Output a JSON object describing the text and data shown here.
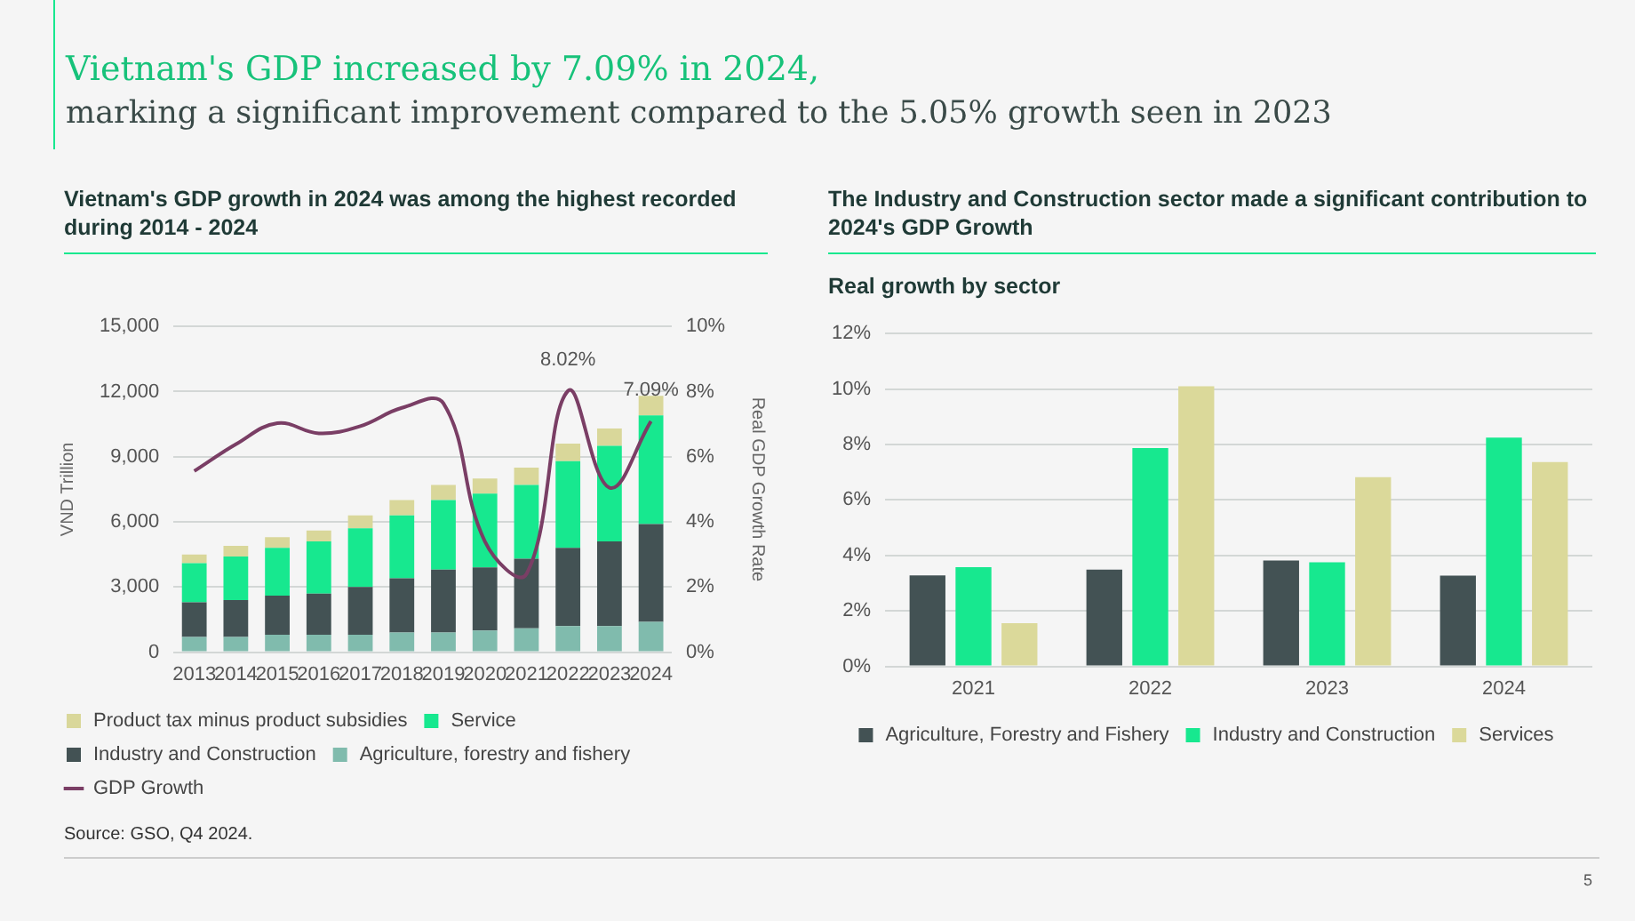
{
  "chart_data": [
    {
      "type": "bar",
      "title": "Vietnam's GDP growth in 2024 was among the highest recorded during 2014 - 2024",
      "annotations": [
        "Vietnam's GDP increased by 7.09% in 2024,",
        "marking a significant improvement compared to the 5.05% growth seen in 2023",
        "Source: GSO, Q4 2024.",
        "5"
      ],
      "ylabel": "VND Trillion",
      "y2label": "Real GDP Growth Rate",
      "stacked": true,
      "legend": "bottom",
      "grid": "y",
      "marker": "none",
      "categories": [
        "2013",
        "2014",
        "2015",
        "2016",
        "2017",
        "2018",
        "2019",
        "2020",
        "2021",
        "2022",
        "2023",
        "2024"
      ],
      "ylim": [
        0,
        15000
      ],
      "yticks": [
        0,
        {
          "value": 3000,
          "label": "3,000"
        },
        {
          "value": 6000,
          "label": "6,000"
        },
        {
          "value": 9000,
          "label": "9,000"
        },
        {
          "value": 12000,
          "label": "12,000"
        },
        {
          "value": 15000,
          "label": "15,000"
        }
      ],
      "y2lim": [
        0,
        10
      ],
      "y2ticks": [
        {
          "value": 0,
          "label": "0%"
        },
        {
          "value": 2,
          "label": "2%"
        },
        {
          "value": 4,
          "label": "4%"
        },
        {
          "value": 6,
          "label": "6%"
        },
        {
          "value": 8,
          "label": "8%"
        },
        {
          "value": 10,
          "label": "10%"
        }
      ],
      "series": [
        {
          "name": "Agriculture, forestry and fishery",
          "color": "#80bbad",
          "values": [
            700,
            700,
            800,
            800,
            800,
            900,
            900,
            1000,
            1100,
            1200,
            1200,
            1400
          ]
        },
        {
          "name": "Industry and Construction",
          "color": "#435254",
          "values": [
            1600,
            1700,
            1800,
            1900,
            2200,
            2500,
            2900,
            2900,
            3200,
            3600,
            3900,
            4500
          ]
        },
        {
          "name": "Service",
          "color": "#17e88f",
          "values": [
            1800,
            2000,
            2200,
            2400,
            2700,
            2900,
            3200,
            3400,
            3400,
            4000,
            4400,
            5000
          ]
        },
        {
          "name": "Product tax minus product subsidies",
          "color": "#d9d79a",
          "values": [
            400,
            500,
            500,
            500,
            600,
            700,
            700,
            700,
            800,
            800,
            800,
            900
          ]
        },
        {
          "name": "GDP Growth",
          "type": "line",
          "axis": "y2",
          "color": "#7a3e65",
          "values": [
            5.56,
            6.38,
            7.03,
            6.72,
            6.94,
            7.5,
            7.64,
            3.4,
            2.4,
            8.02,
            5.05,
            7.09
          ],
          "value_labels": [
            null,
            null,
            null,
            null,
            null,
            null,
            null,
            null,
            null,
            "8.02%",
            null,
            "7.09%"
          ]
        }
      ]
    },
    {
      "type": "bar",
      "title": "The Industry and Construction sector made a significant contribution to 2024's GDP Growth",
      "subtitle": "Real growth by sector",
      "legend": "bottom",
      "grid": "y",
      "categories": [
        "2021",
        "2022",
        "2023",
        "2024"
      ],
      "ylim": [
        0,
        12
      ],
      "yticks": [
        {
          "value": 0,
          "label": "0%"
        },
        {
          "value": 2,
          "label": "2%"
        },
        {
          "value": 4,
          "label": "4%"
        },
        {
          "value": 6,
          "label": "6%"
        },
        {
          "value": 8,
          "label": "8%"
        },
        {
          "value": 10,
          "label": "10%"
        },
        {
          "value": 12,
          "label": "12%"
        }
      ],
      "series": [
        {
          "name": "Agriculture, Forestry and Fishery",
          "color": "#435254",
          "values": [
            3.28,
            3.49,
            3.82,
            3.27
          ]
        },
        {
          "name": "Industry and Construction",
          "color": "#17e88f",
          "values": [
            3.58,
            7.87,
            3.75,
            8.25
          ]
        },
        {
          "name": "Services",
          "color": "#dbd99a",
          "values": [
            1.56,
            10.1,
            6.82,
            7.37
          ]
        }
      ]
    }
  ]
}
